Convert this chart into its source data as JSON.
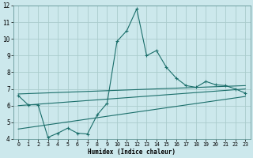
{
  "xlabel": "Humidex (Indice chaleur)",
  "bg_color": "#cce8ec",
  "grid_color": "#aacccc",
  "line_color": "#1a6e6a",
  "xlim": [
    -0.5,
    23.5
  ],
  "ylim": [
    4,
    12
  ],
  "xticks": [
    0,
    1,
    2,
    3,
    4,
    5,
    6,
    7,
    8,
    9,
    10,
    11,
    12,
    13,
    14,
    15,
    16,
    17,
    18,
    19,
    20,
    21,
    22,
    23
  ],
  "yticks": [
    4,
    5,
    6,
    7,
    8,
    9,
    10,
    11,
    12
  ],
  "line1_x": [
    0,
    1,
    2,
    3,
    4,
    5,
    6,
    7,
    8,
    9,
    10,
    11,
    12,
    13,
    14,
    15,
    16,
    17,
    18,
    19,
    20,
    21,
    22,
    23
  ],
  "line1_y": [
    6.6,
    6.05,
    6.05,
    4.1,
    4.35,
    4.65,
    4.35,
    4.3,
    5.45,
    6.15,
    9.85,
    10.5,
    11.8,
    9.0,
    9.3,
    8.3,
    7.65,
    7.2,
    7.1,
    7.45,
    7.25,
    7.2,
    7.0,
    6.75
  ],
  "line2_x": [
    0,
    23
  ],
  "line2_y": [
    6.0,
    7.0
  ],
  "line3_x": [
    0,
    23
  ],
  "line3_y": [
    6.7,
    7.2
  ],
  "line4_x": [
    0,
    23
  ],
  "line4_y": [
    4.6,
    6.55
  ]
}
